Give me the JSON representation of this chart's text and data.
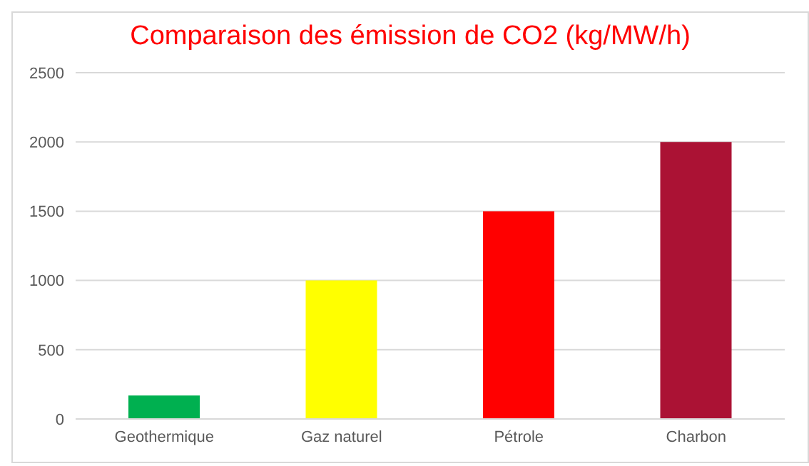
{
  "chart_data": {
    "type": "bar",
    "title": "Comparaison des émission de CO2 (kg/MW/h)",
    "categories": [
      "Geothermique",
      "Gaz naturel",
      "Pétrole",
      "Charbon"
    ],
    "values": [
      170,
      1000,
      1500,
      2000
    ],
    "colors": [
      "#00b050",
      "#ffff00",
      "#ff0000",
      "#ab1234"
    ],
    "ylim": [
      0,
      2500
    ],
    "yticks": [
      0,
      500,
      1000,
      1500,
      2000,
      2500
    ],
    "grid": "y"
  }
}
